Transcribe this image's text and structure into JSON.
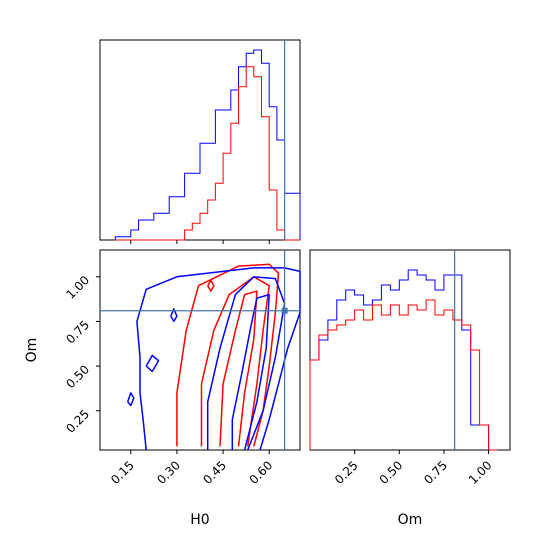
{
  "chart_data": {
    "type": "corner",
    "parameters": [
      "H0",
      "Om"
    ],
    "truth": {
      "H0": 0.65,
      "Om": 0.81
    },
    "colors": {
      "blue": "#0000ff",
      "red": "#ff0000",
      "truth": "#4477aa"
    },
    "panels": {
      "h0_hist": {
        "xlim": [
          0.05,
          0.7
        ],
        "bin_edges": [
          0.1,
          0.125,
          0.15,
          0.175,
          0.2,
          0.225,
          0.25,
          0.275,
          0.3,
          0.325,
          0.35,
          0.375,
          0.4,
          0.425,
          0.45,
          0.475,
          0.5,
          0.525,
          0.55,
          0.575,
          0.6,
          0.625,
          0.65,
          0.675,
          0.7
        ],
        "blue_counts": [
          1,
          1,
          3,
          6,
          6,
          8,
          8,
          13,
          13,
          20,
          20,
          29,
          29,
          39,
          39,
          45,
          52,
          56,
          57,
          53,
          40,
          30,
          14,
          14
        ],
        "red_counts": [
          0,
          0,
          0,
          0,
          0,
          0,
          0,
          0,
          0,
          3,
          5,
          8,
          12,
          17,
          26,
          35,
          46,
          52,
          49,
          37,
          15,
          3,
          0,
          0
        ],
        "ymax": 60
      },
      "om_hist": {
        "xlim": [
          0.0,
          1.12
        ],
        "bin_edges": [
          0.0,
          0.05,
          0.1,
          0.15,
          0.2,
          0.25,
          0.3,
          0.35,
          0.4,
          0.45,
          0.5,
          0.55,
          0.6,
          0.65,
          0.7,
          0.75,
          0.8,
          0.85,
          0.9,
          0.95,
          1.0,
          1.05
        ],
        "blue_counts": [
          18,
          22,
          26,
          30,
          32,
          31,
          29,
          30,
          33,
          32,
          34,
          36,
          35,
          34,
          32,
          35,
          35,
          24,
          5,
          5,
          0
        ],
        "red_counts": [
          18,
          23,
          24,
          25,
          26,
          28,
          26,
          29,
          27,
          29,
          27,
          29,
          28,
          30,
          27,
          28,
          26,
          25,
          20,
          5,
          0
        ],
        "ymax": 40
      },
      "joint": {
        "xlim": [
          0.05,
          0.7
        ],
        "ylim": [
          0.03,
          1.15
        ],
        "blue_contours": [
          [
            [
              0.2,
              0.03
            ],
            [
              0.19,
              0.2
            ],
            [
              0.18,
              0.35
            ],
            [
              0.18,
              0.55
            ],
            [
              0.17,
              0.75
            ],
            [
              0.2,
              0.93
            ],
            [
              0.3,
              1.0
            ],
            [
              0.45,
              1.03
            ],
            [
              0.55,
              1.05
            ],
            [
              0.65,
              1.05
            ],
            [
              0.7,
              1.03
            ],
            [
              0.7,
              0.8
            ],
            [
              0.66,
              0.6
            ],
            [
              0.63,
              0.4
            ],
            [
              0.6,
              0.2
            ],
            [
              0.57,
              0.03
            ]
          ],
          [
            [
              0.4,
              0.03
            ],
            [
              0.4,
              0.3
            ],
            [
              0.44,
              0.6
            ],
            [
              0.49,
              0.9
            ],
            [
              0.55,
              1.0
            ],
            [
              0.62,
              0.99
            ],
            [
              0.65,
              0.85
            ],
            [
              0.62,
              0.55
            ],
            [
              0.58,
              0.25
            ],
            [
              0.53,
              0.03
            ]
          ],
          [
            [
              0.48,
              0.03
            ],
            [
              0.48,
              0.2
            ],
            [
              0.51,
              0.45
            ],
            [
              0.54,
              0.72
            ],
            [
              0.56,
              0.88
            ],
            [
              0.6,
              0.9
            ],
            [
              0.59,
              0.6
            ],
            [
              0.56,
              0.3
            ],
            [
              0.52,
              0.03
            ]
          ],
          [
            [
              0.14,
              0.3
            ],
            [
              0.15,
              0.35
            ],
            [
              0.16,
              0.32
            ],
            [
              0.15,
              0.28
            ],
            [
              0.14,
              0.3
            ]
          ],
          [
            [
              0.2,
              0.5
            ],
            [
              0.22,
              0.56
            ],
            [
              0.24,
              0.53
            ],
            [
              0.22,
              0.47
            ],
            [
              0.2,
              0.5
            ]
          ],
          [
            [
              0.28,
              0.78
            ],
            [
              0.29,
              0.82
            ],
            [
              0.3,
              0.78
            ],
            [
              0.29,
              0.75
            ],
            [
              0.28,
              0.78
            ]
          ]
        ],
        "red_contours": [
          [
            [
              0.3,
              0.05
            ],
            [
              0.3,
              0.35
            ],
            [
              0.33,
              0.7
            ],
            [
              0.37,
              0.95
            ],
            [
              0.5,
              1.06
            ],
            [
              0.6,
              1.07
            ],
            [
              0.63,
              1.02
            ],
            [
              0.62,
              0.8
            ],
            [
              0.6,
              0.5
            ],
            [
              0.58,
              0.25
            ],
            [
              0.55,
              0.05
            ]
          ],
          [
            [
              0.38,
              0.05
            ],
            [
              0.38,
              0.4
            ],
            [
              0.42,
              0.7
            ],
            [
              0.47,
              0.9
            ],
            [
              0.55,
              1.0
            ],
            [
              0.6,
              0.95
            ],
            [
              0.58,
              0.7
            ],
            [
              0.56,
              0.4
            ],
            [
              0.53,
              0.05
            ]
          ],
          [
            [
              0.44,
              0.05
            ],
            [
              0.45,
              0.4
            ],
            [
              0.49,
              0.7
            ],
            [
              0.52,
              0.9
            ],
            [
              0.56,
              0.92
            ],
            [
              0.55,
              0.65
            ],
            [
              0.52,
              0.35
            ],
            [
              0.5,
              0.05
            ]
          ],
          [
            [
              0.4,
              0.95
            ],
            [
              0.41,
              0.98
            ],
            [
              0.42,
              0.95
            ],
            [
              0.41,
              0.92
            ],
            [
              0.4,
              0.95
            ]
          ]
        ]
      }
    },
    "axes": {
      "h0_ticks": [
        0.15,
        0.3,
        0.45,
        0.6
      ],
      "h0_tick_labels": [
        "0.15",
        "0.30",
        "0.45",
        "0.60"
      ],
      "om_ticks": [
        0.25,
        0.5,
        0.75,
        1.0
      ],
      "om_tick_labels": [
        "0.25",
        "0.50",
        "0.75",
        "1.00"
      ],
      "xlabel_left": "H0",
      "xlabel_right": "Om",
      "ylabel": "Om"
    }
  }
}
